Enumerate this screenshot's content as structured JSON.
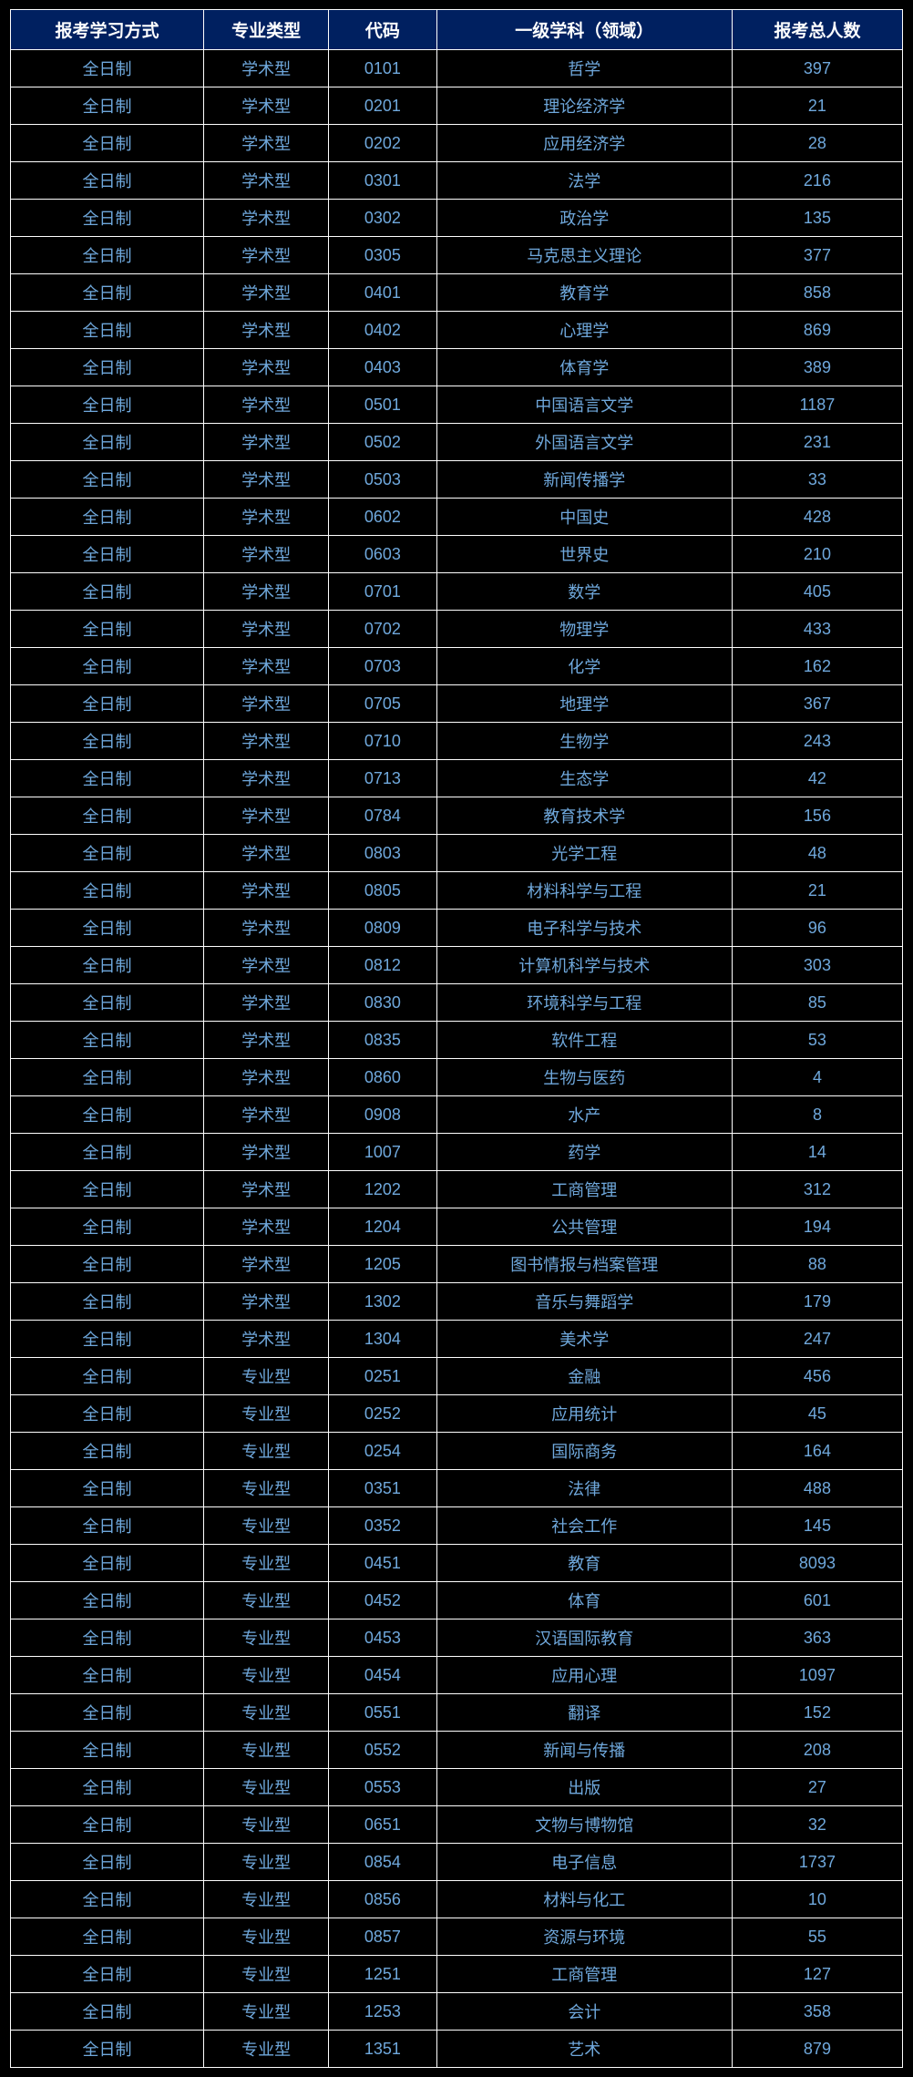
{
  "table": {
    "header_bg": "#002060",
    "header_fg": "#ffffff",
    "body_bg": "#000000",
    "body_fg": "#6fa8dc",
    "border_color": "#ffffff",
    "columns": [
      "报考学习方式",
      "专业类型",
      "代码",
      "一级学科（领域）",
      "报考总人数"
    ],
    "rows": [
      [
        "全日制",
        "学术型",
        "0101",
        "哲学",
        "397"
      ],
      [
        "全日制",
        "学术型",
        "0201",
        "理论经济学",
        "21"
      ],
      [
        "全日制",
        "学术型",
        "0202",
        "应用经济学",
        "28"
      ],
      [
        "全日制",
        "学术型",
        "0301",
        "法学",
        "216"
      ],
      [
        "全日制",
        "学术型",
        "0302",
        "政治学",
        "135"
      ],
      [
        "全日制",
        "学术型",
        "0305",
        "马克思主义理论",
        "377"
      ],
      [
        "全日制",
        "学术型",
        "0401",
        "教育学",
        "858"
      ],
      [
        "全日制",
        "学术型",
        "0402",
        "心理学",
        "869"
      ],
      [
        "全日制",
        "学术型",
        "0403",
        "体育学",
        "389"
      ],
      [
        "全日制",
        "学术型",
        "0501",
        "中国语言文学",
        "1187"
      ],
      [
        "全日制",
        "学术型",
        "0502",
        "外国语言文学",
        "231"
      ],
      [
        "全日制",
        "学术型",
        "0503",
        "新闻传播学",
        "33"
      ],
      [
        "全日制",
        "学术型",
        "0602",
        "中国史",
        "428"
      ],
      [
        "全日制",
        "学术型",
        "0603",
        "世界史",
        "210"
      ],
      [
        "全日制",
        "学术型",
        "0701",
        "数学",
        "405"
      ],
      [
        "全日制",
        "学术型",
        "0702",
        "物理学",
        "433"
      ],
      [
        "全日制",
        "学术型",
        "0703",
        "化学",
        "162"
      ],
      [
        "全日制",
        "学术型",
        "0705",
        "地理学",
        "367"
      ],
      [
        "全日制",
        "学术型",
        "0710",
        "生物学",
        "243"
      ],
      [
        "全日制",
        "学术型",
        "0713",
        "生态学",
        "42"
      ],
      [
        "全日制",
        "学术型",
        "0784",
        "教育技术学",
        "156"
      ],
      [
        "全日制",
        "学术型",
        "0803",
        "光学工程",
        "48"
      ],
      [
        "全日制",
        "学术型",
        "0805",
        "材料科学与工程",
        "21"
      ],
      [
        "全日制",
        "学术型",
        "0809",
        "电子科学与技术",
        "96"
      ],
      [
        "全日制",
        "学术型",
        "0812",
        "计算机科学与技术",
        "303"
      ],
      [
        "全日制",
        "学术型",
        "0830",
        "环境科学与工程",
        "85"
      ],
      [
        "全日制",
        "学术型",
        "0835",
        "软件工程",
        "53"
      ],
      [
        "全日制",
        "学术型",
        "0860",
        "生物与医药",
        "4"
      ],
      [
        "全日制",
        "学术型",
        "0908",
        "水产",
        "8"
      ],
      [
        "全日制",
        "学术型",
        "1007",
        "药学",
        "14"
      ],
      [
        "全日制",
        "学术型",
        "1202",
        "工商管理",
        "312"
      ],
      [
        "全日制",
        "学术型",
        "1204",
        "公共管理",
        "194"
      ],
      [
        "全日制",
        "学术型",
        "1205",
        "图书情报与档案管理",
        "88"
      ],
      [
        "全日制",
        "学术型",
        "1302",
        "音乐与舞蹈学",
        "179"
      ],
      [
        "全日制",
        "学术型",
        "1304",
        "美术学",
        "247"
      ],
      [
        "全日制",
        "专业型",
        "0251",
        "金融",
        "456"
      ],
      [
        "全日制",
        "专业型",
        "0252",
        "应用统计",
        "45"
      ],
      [
        "全日制",
        "专业型",
        "0254",
        "国际商务",
        "164"
      ],
      [
        "全日制",
        "专业型",
        "0351",
        "法律",
        "488"
      ],
      [
        "全日制",
        "专业型",
        "0352",
        "社会工作",
        "145"
      ],
      [
        "全日制",
        "专业型",
        "0451",
        "教育",
        "8093"
      ],
      [
        "全日制",
        "专业型",
        "0452",
        "体育",
        "601"
      ],
      [
        "全日制",
        "专业型",
        "0453",
        "汉语国际教育",
        "363"
      ],
      [
        "全日制",
        "专业型",
        "0454",
        "应用心理",
        "1097"
      ],
      [
        "全日制",
        "专业型",
        "0551",
        "翻译",
        "152"
      ],
      [
        "全日制",
        "专业型",
        "0552",
        "新闻与传播",
        "208"
      ],
      [
        "全日制",
        "专业型",
        "0553",
        "出版",
        "27"
      ],
      [
        "全日制",
        "专业型",
        "0651",
        "文物与博物馆",
        "32"
      ],
      [
        "全日制",
        "专业型",
        "0854",
        "电子信息",
        "1737"
      ],
      [
        "全日制",
        "专业型",
        "0856",
        "材料与化工",
        "10"
      ],
      [
        "全日制",
        "专业型",
        "0857",
        "资源与环境",
        "55"
      ],
      [
        "全日制",
        "专业型",
        "1251",
        "工商管理",
        "127"
      ],
      [
        "全日制",
        "专业型",
        "1253",
        "会计",
        "358"
      ],
      [
        "全日制",
        "专业型",
        "1351",
        "艺术",
        "879"
      ]
    ]
  }
}
